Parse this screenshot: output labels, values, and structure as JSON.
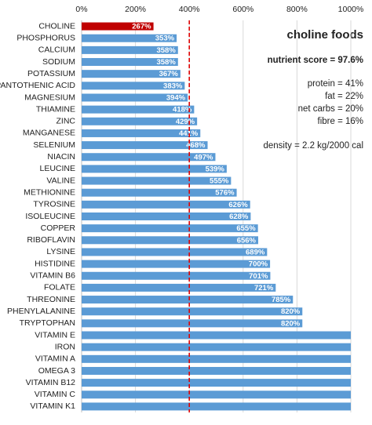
{
  "chart_data": {
    "type": "hbar",
    "title": "choline foods",
    "annotations": [
      "nutrient score = 97.6%",
      "protein = 41%",
      "fat = 22%",
      "net carbs = 20%",
      "fibre = 16%",
      "density = 2.2 kg/2000 cal"
    ],
    "categories": [
      "CHOLINE",
      "PHOSPHORUS",
      "CALCIUM",
      "SODIUM",
      "POTASSIUM",
      "PANTOTHENIC ACID",
      "MAGNESIUM",
      "THIAMINE",
      "ZINC",
      "MANGANESE",
      "SELENIUM",
      "NIACIN",
      "LEUCINE",
      "VALINE",
      "METHIONINE",
      "TYROSINE",
      "ISOLEUCINE",
      "COPPER",
      "RIBOFLAVIN",
      "LYSINE",
      "HISTIDINE",
      "VITAMIN B6",
      "FOLATE",
      "THREONINE",
      "PHENYLALANINE",
      "TRYPTOPHAN",
      "VITAMIN E",
      "IRON",
      "VITAMIN A",
      "OMEGA 3",
      "VITAMIN B12",
      "VITAMIN C",
      "VITAMIN K1"
    ],
    "values": [
      267,
      353,
      358,
      358,
      367,
      383,
      394,
      418,
      429,
      441,
      468,
      497,
      539,
      555,
      576,
      626,
      628,
      655,
      656,
      689,
      700,
      701,
      721,
      785,
      820,
      820,
      1000,
      1000,
      1000,
      1000,
      1000,
      1000,
      1000
    ],
    "value_labels": [
      "267%",
      "353%",
      "358%",
      "358%",
      "367%",
      "383%",
      "394%",
      "418%",
      "429%",
      "441%",
      "468%",
      "497%",
      "539%",
      "555%",
      "576%",
      "626%",
      "628%",
      "655%",
      "656%",
      "689%",
      "700%",
      "701%",
      "721%",
      "785%",
      "820%",
      "820%",
      null,
      null,
      null,
      null,
      null,
      null,
      null
    ],
    "colors": [
      "#c00000",
      "#5b9bd5",
      "#5b9bd5",
      "#5b9bd5",
      "#5b9bd5",
      "#5b9bd5",
      "#5b9bd5",
      "#5b9bd5",
      "#5b9bd5",
      "#5b9bd5",
      "#5b9bd5",
      "#5b9bd5",
      "#5b9bd5",
      "#5b9bd5",
      "#5b9bd5",
      "#5b9bd5",
      "#5b9bd5",
      "#5b9bd5",
      "#5b9bd5",
      "#5b9bd5",
      "#5b9bd5",
      "#5b9bd5",
      "#5b9bd5",
      "#5b9bd5",
      "#5b9bd5",
      "#5b9bd5",
      "#5b9bd5",
      "#5b9bd5",
      "#5b9bd5",
      "#5b9bd5",
      "#5b9bd5",
      "#5b9bd5",
      "#5b9bd5"
    ],
    "xlim": [
      0,
      1000
    ],
    "xticks": [
      {
        "value": 0,
        "label": "0%"
      },
      {
        "value": 200,
        "label": "200%"
      },
      {
        "value": 400,
        "label": "400%"
      },
      {
        "value": 600,
        "label": "600%"
      },
      {
        "value": 800,
        "label": "800%"
      },
      {
        "value": 1000,
        "label": "1000%"
      }
    ],
    "grid": true,
    "reference_line": {
      "value": 400,
      "color": "#e00000"
    }
  }
}
